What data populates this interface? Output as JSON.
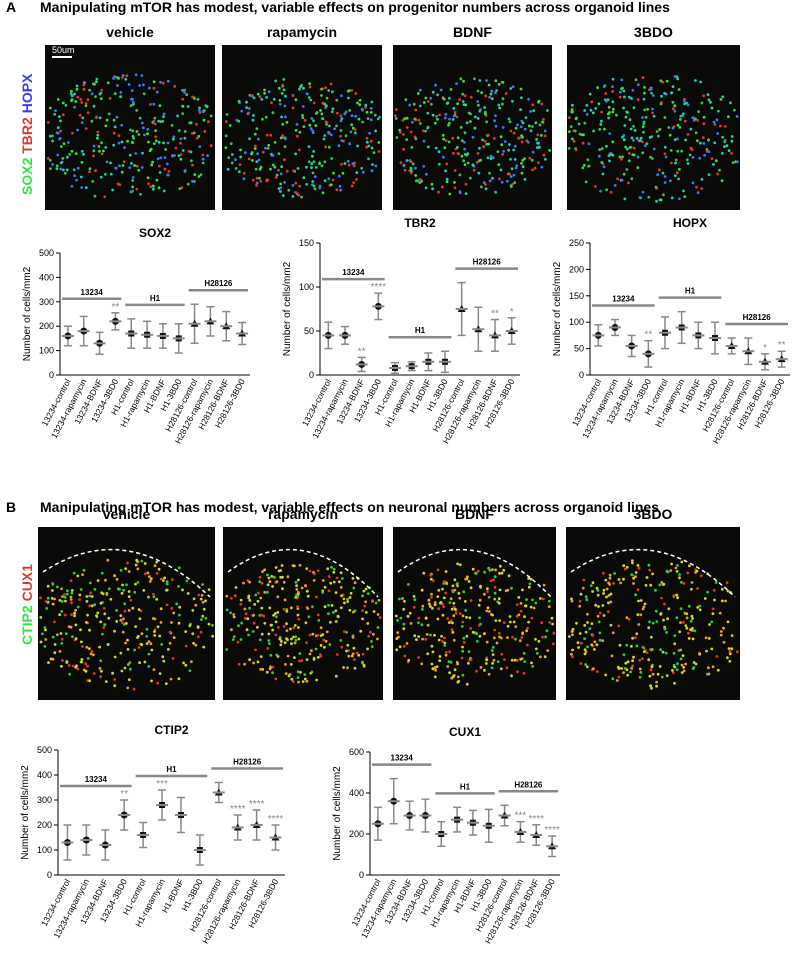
{
  "panels": [
    {
      "letter": "A",
      "title": "Manipulating mTOR has modest, variable effects on progenitor numbers across organoid lines",
      "image_labels": [
        "vehicle",
        "rapamycin",
        "BDNF",
        "3BDO"
      ],
      "stains": [
        "SOX2",
        "TBR2",
        "HOPX"
      ],
      "scale_bar": "50um"
    },
    {
      "letter": "B",
      "title": "Manipulating mTOR has modest, variable effects on neuronal numbers across organoid lines",
      "image_labels": [
        "vehicle",
        "rapamycin",
        "BDNF",
        "3BDO"
      ],
      "stains": [
        "CTIP2",
        "CUX1"
      ]
    }
  ],
  "chart_data": [
    {
      "type": "errorbar",
      "title": "SOX2",
      "ylabel": "Number of cells/mm2",
      "categories": [
        "13234-control",
        "13234-rapamycin",
        "13234-BDNF",
        "13234-3BD0",
        "H1-control",
        "H1-rapamycin",
        "H1-BDNF",
        "H1-3BD0",
        "H28126-control",
        "H28126-rapamycin",
        "H28126-BDNF",
        "H28126-3BD0"
      ],
      "groups": [
        "13234",
        "H1",
        "H28126"
      ],
      "values": [
        160,
        180,
        130,
        220,
        170,
        165,
        160,
        150,
        210,
        220,
        200,
        170
      ],
      "errors": [
        40,
        60,
        45,
        35,
        60,
        55,
        50,
        60,
        80,
        60,
        60,
        45
      ],
      "significance": [
        null,
        null,
        null,
        "**",
        null,
        null,
        null,
        null,
        null,
        null,
        null,
        null
      ],
      "ylim": [
        0,
        500
      ],
      "yticks": [
        0,
        100,
        200,
        300,
        400,
        500
      ]
    },
    {
      "type": "errorbar",
      "title": "TBR2",
      "ylabel": "Number of cells/mm2",
      "categories": [
        "13234-control",
        "13234-rapamycin",
        "13234-BDNF",
        "13234-3BD0",
        "H1-control",
        "H1-rapamycin",
        "H1-BDNF",
        "H1-3BD0",
        "H28126-control",
        "H28126-rapamycin",
        "H28126-BDNF",
        "H28126-3BD0"
      ],
      "groups": [
        "13234",
        "H1",
        "H28126"
      ],
      "values": [
        45,
        45,
        12,
        78,
        8,
        10,
        15,
        15,
        75,
        52,
        45,
        50
      ],
      "errors": [
        15,
        10,
        8,
        15,
        6,
        5,
        10,
        12,
        30,
        25,
        18,
        15
      ],
      "significance": [
        null,
        null,
        "**",
        "****",
        null,
        null,
        null,
        null,
        null,
        null,
        "**",
        "*"
      ],
      "ylim": [
        0,
        150
      ],
      "yticks": [
        0,
        50,
        100,
        150
      ]
    },
    {
      "type": "errorbar",
      "title": "HOPX",
      "ylabel": "Number of cells/mm2",
      "categories": [
        "13234-control",
        "13234-rapamycin",
        "13234-BDNF",
        "13234-3BD0",
        "H1-control",
        "H1-rapamycin",
        "H1-BDNF",
        "H1-3BD0",
        "H28126-control",
        "H28126-rapamycin",
        "H28126-BDNF",
        "H28126-3BD0"
      ],
      "groups": [
        "13234",
        "H1",
        "H28126"
      ],
      "values": [
        75,
        90,
        55,
        40,
        80,
        90,
        75,
        70,
        55,
        45,
        25,
        30
      ],
      "errors": [
        20,
        15,
        20,
        25,
        30,
        30,
        25,
        30,
        15,
        25,
        15,
        15
      ],
      "significance": [
        null,
        null,
        null,
        "**",
        null,
        null,
        null,
        null,
        null,
        null,
        "*",
        "**"
      ],
      "ylim": [
        0,
        250
      ],
      "yticks": [
        0,
        50,
        100,
        150,
        200,
        250
      ]
    },
    {
      "type": "errorbar",
      "title": "CTIP2",
      "ylabel": "Number of cells/mm2",
      "categories": [
        "13234-control",
        "13234-rapamycin",
        "13234-BDNF",
        "13234-3BD0",
        "H1-control",
        "H1-rapamycin",
        "H1-BDNF",
        "H1-3BD0",
        "H28126-control",
        "H28126-rapamycin",
        "H28126-BDNF",
        "H28126-3BD0"
      ],
      "groups": [
        "13234",
        "H1",
        "H28126"
      ],
      "values": [
        130,
        140,
        120,
        240,
        160,
        280,
        240,
        100,
        330,
        190,
        200,
        150
      ],
      "errors": [
        70,
        60,
        60,
        60,
        50,
        60,
        70,
        60,
        40,
        50,
        60,
        50
      ],
      "significance": [
        null,
        null,
        null,
        "**",
        null,
        "***",
        null,
        null,
        null,
        "****",
        "****",
        "****"
      ],
      "ylim": [
        0,
        500
      ],
      "yticks": [
        0,
        100,
        200,
        300,
        400,
        500
      ]
    },
    {
      "type": "errorbar",
      "title": "CUX1",
      "ylabel": "Number of cells/mm2",
      "categories": [
        "13234-control",
        "13234-rapamycin",
        "13234-BDNF",
        "13234-3BD0",
        "H1-control",
        "H1-rapamycin",
        "H1-BDNF",
        "H1-3BD0",
        "H28126-control",
        "H28126-rapamycin",
        "H28126-BDNF",
        "H28126-3BD0"
      ],
      "groups": [
        "13234",
        "H1",
        "H28126"
      ],
      "values": [
        250,
        360,
        290,
        290,
        200,
        270,
        255,
        240,
        290,
        210,
        195,
        140
      ],
      "errors": [
        80,
        110,
        70,
        80,
        60,
        60,
        60,
        80,
        50,
        50,
        50,
        50
      ],
      "significance": [
        null,
        null,
        null,
        null,
        null,
        null,
        null,
        null,
        null,
        "***",
        "****",
        "****"
      ],
      "ylim": [
        0,
        600
      ],
      "yticks": [
        0,
        200,
        400,
        600
      ]
    }
  ]
}
